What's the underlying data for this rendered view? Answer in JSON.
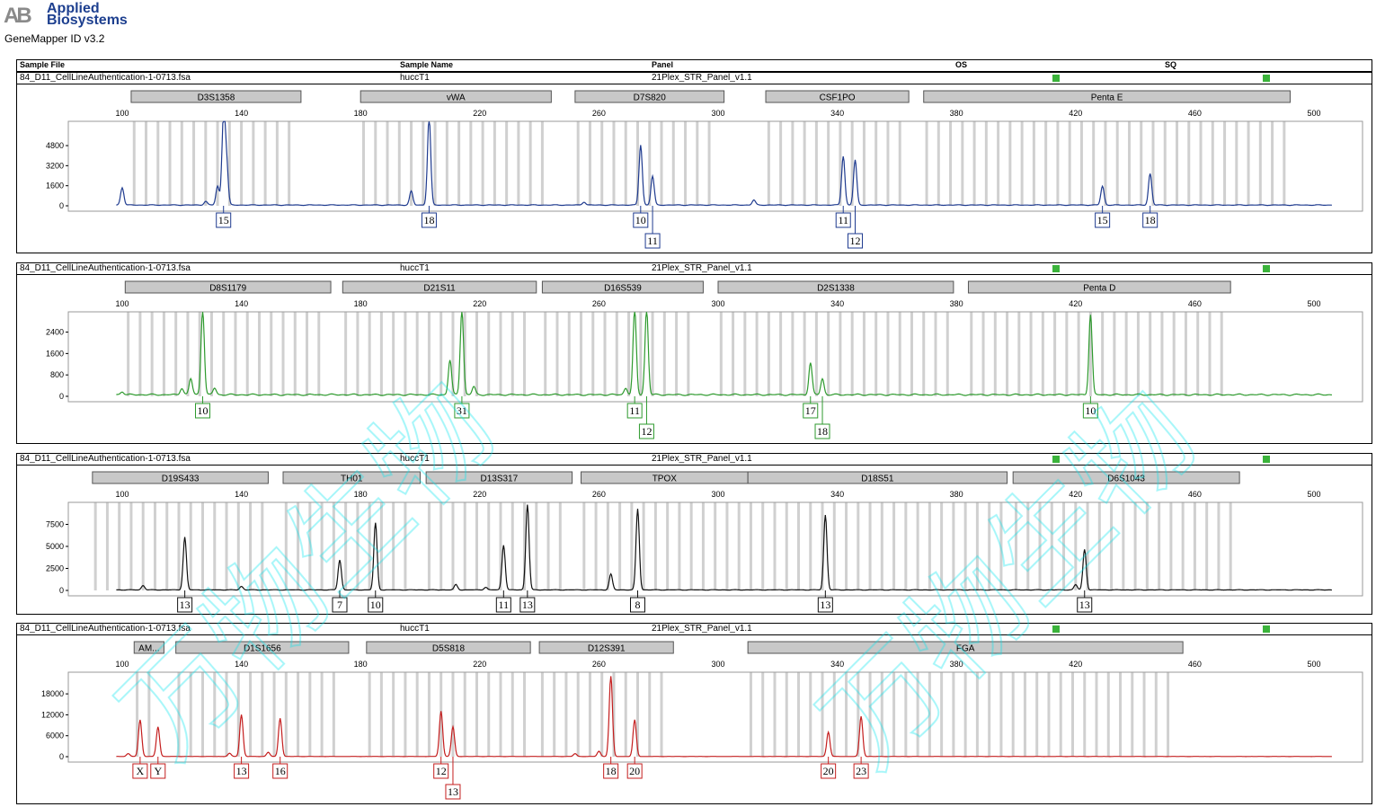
{
  "app": {
    "brand_mark": "AB",
    "brand_line1": "Applied",
    "brand_line2": "Biosystems",
    "version": "GeneMapper ID v3.2",
    "brand_color": "#1d3f8f"
  },
  "header": {
    "sample_file": "Sample File",
    "sample_name": "Sample Name",
    "panel": "Panel",
    "os": "OS",
    "sq": "SQ"
  },
  "watermark_text": "万物生物",
  "chart_data": [
    {
      "type": "line",
      "dye": "blue",
      "color": "#1f3b8f",
      "sample_file": "84_D11_CellLineAuthentication-1-0713.fsa",
      "sample_name": "huccT1",
      "panel": "21Plex_STR_Panel_v1.1",
      "x_ticks": [
        100,
        140,
        180,
        220,
        260,
        300,
        340,
        380,
        420,
        460,
        500
      ],
      "y_ticks": [
        0,
        1600,
        3200,
        4800
      ],
      "y_tick_labels": [
        "0",
        "1600",
        "3200",
        "4800"
      ],
      "ylim": [
        0,
        6400
      ],
      "markers": [
        {
          "name": "D3S1358",
          "start": 103,
          "end": 160
        },
        {
          "name": "vWA",
          "start": 180,
          "end": 244
        },
        {
          "name": "D7S820",
          "start": 252,
          "end": 302
        },
        {
          "name": "CSF1PO",
          "start": 316,
          "end": 364
        },
        {
          "name": "Penta E",
          "start": 369,
          "end": 492
        }
      ],
      "peaks": [
        {
          "x": 132,
          "h": 1500
        },
        {
          "x": 134,
          "h": 7000
        },
        {
          "x": 135,
          "h": 3200
        },
        {
          "x": 197,
          "h": 1100
        },
        {
          "x": 203,
          "h": 7000
        },
        {
          "x": 274,
          "h": 4800
        },
        {
          "x": 278,
          "h": 2300
        },
        {
          "x": 342,
          "h": 3900
        },
        {
          "x": 346,
          "h": 3600
        },
        {
          "x": 429,
          "h": 1500
        },
        {
          "x": 445,
          "h": 2500
        },
        {
          "x": 100,
          "h": 1400
        },
        {
          "x": 128,
          "h": 300
        },
        {
          "x": 255,
          "h": 250
        },
        {
          "x": 312,
          "h": 400
        }
      ],
      "alleles": [
        {
          "label": "15",
          "x": 134,
          "row": 0
        },
        {
          "label": "18",
          "x": 203,
          "row": 0
        },
        {
          "label": "10",
          "x": 274,
          "row": 0
        },
        {
          "label": "11",
          "x": 278,
          "row": 1
        },
        {
          "label": "11",
          "x": 342,
          "row": 0
        },
        {
          "label": "12",
          "x": 346,
          "row": 1
        },
        {
          "label": "15",
          "x": 429,
          "row": 0
        },
        {
          "label": "18",
          "x": 445,
          "row": 0
        }
      ]
    },
    {
      "type": "line",
      "dye": "green",
      "color": "#2e9a2e",
      "sample_file": "84_D11_CellLineAuthentication-1-0713.fsa",
      "sample_name": "huccT1",
      "panel": "21Plex_STR_Panel_v1.1",
      "x_ticks": [
        100,
        140,
        180,
        220,
        260,
        300,
        340,
        380,
        420,
        460,
        500
      ],
      "y_ticks": [
        0,
        800,
        1600,
        2400
      ],
      "y_tick_labels": [
        "0",
        "800",
        "1600",
        "2400"
      ],
      "ylim": [
        0,
        3000
      ],
      "markers": [
        {
          "name": "D8S1179",
          "start": 101,
          "end": 170
        },
        {
          "name": "D21S11",
          "start": 174,
          "end": 239
        },
        {
          "name": "D16S539",
          "start": 241,
          "end": 295
        },
        {
          "name": "D2S1338",
          "start": 300,
          "end": 379
        },
        {
          "name": "Penta D",
          "start": 384,
          "end": 472
        }
      ],
      "peaks": [
        {
          "x": 123,
          "h": 600
        },
        {
          "x": 127,
          "h": 3200
        },
        {
          "x": 131,
          "h": 250
        },
        {
          "x": 210,
          "h": 1300
        },
        {
          "x": 214,
          "h": 3200
        },
        {
          "x": 218,
          "h": 300
        },
        {
          "x": 272,
          "h": 3200
        },
        {
          "x": 276,
          "h": 3200
        },
        {
          "x": 269,
          "h": 250
        },
        {
          "x": 331,
          "h": 1200
        },
        {
          "x": 335,
          "h": 600
        },
        {
          "x": 425,
          "h": 3000
        },
        {
          "x": 120,
          "h": 250
        },
        {
          "x": 100,
          "h": 120
        }
      ],
      "alleles": [
        {
          "label": "10",
          "x": 127,
          "row": 0
        },
        {
          "label": "31",
          "x": 214,
          "row": 0
        },
        {
          "label": "11",
          "x": 272,
          "row": 0
        },
        {
          "label": "12",
          "x": 276,
          "row": 1
        },
        {
          "label": "17",
          "x": 331,
          "row": 0
        },
        {
          "label": "18",
          "x": 335,
          "row": 1
        },
        {
          "label": "10",
          "x": 425,
          "row": 0
        }
      ]
    },
    {
      "type": "line",
      "dye": "black",
      "color": "#111111",
      "sample_file": "84_D11_CellLineAuthentication-1-0713.fsa",
      "sample_name": "huccT1",
      "panel": "21Plex_STR_Panel_v1.1",
      "x_ticks": [
        100,
        140,
        180,
        220,
        260,
        300,
        340,
        380,
        420,
        460,
        500
      ],
      "y_ticks": [
        0,
        2500,
        5000,
        7500
      ],
      "y_tick_labels": [
        "0",
        "2500",
        "5000",
        "7500"
      ],
      "ylim": [
        0,
        9500
      ],
      "markers": [
        {
          "name": "D19S433",
          "start": 90,
          "end": 149
        },
        {
          "name": "TH01",
          "start": 154,
          "end": 200
        },
        {
          "name": "D13S317",
          "start": 202,
          "end": 251
        },
        {
          "name": "TPOX",
          "start": 254,
          "end": 310
        },
        {
          "name": "D18S51",
          "start": 310,
          "end": 397
        },
        {
          "name": "D6S1043",
          "start": 399,
          "end": 475
        }
      ],
      "peaks": [
        {
          "x": 121,
          "h": 6000
        },
        {
          "x": 173,
          "h": 3400
        },
        {
          "x": 185,
          "h": 7600
        },
        {
          "x": 228,
          "h": 5100
        },
        {
          "x": 236,
          "h": 9700
        },
        {
          "x": 264,
          "h": 1800
        },
        {
          "x": 273,
          "h": 9200
        },
        {
          "x": 336,
          "h": 8500
        },
        {
          "x": 423,
          "h": 4600
        },
        {
          "x": 107,
          "h": 500
        },
        {
          "x": 140,
          "h": 400
        },
        {
          "x": 212,
          "h": 600
        },
        {
          "x": 222,
          "h": 300
        },
        {
          "x": 420,
          "h": 600
        }
      ],
      "alleles": [
        {
          "label": "13",
          "x": 121,
          "row": 0
        },
        {
          "label": "7",
          "x": 173,
          "row": 0
        },
        {
          "label": "10",
          "x": 185,
          "row": 0
        },
        {
          "label": "11",
          "x": 228,
          "row": 0
        },
        {
          "label": "13",
          "x": 236,
          "row": 0
        },
        {
          "label": "8",
          "x": 273,
          "row": 0
        },
        {
          "label": "13",
          "x": 336,
          "row": 0
        },
        {
          "label": "13",
          "x": 423,
          "row": 0
        }
      ]
    },
    {
      "type": "line",
      "dye": "red",
      "color": "#c41e1e",
      "sample_file": "84_D11_CellLineAuthentication-1-0713.fsa",
      "sample_name": "huccT1",
      "panel": "21Plex_STR_Panel_v1.1",
      "x_ticks": [
        100,
        140,
        180,
        220,
        260,
        300,
        340,
        380,
        420,
        460,
        500
      ],
      "y_ticks": [
        0,
        6000,
        12000,
        18000
      ],
      "y_tick_labels": [
        "0",
        "6000",
        "12000",
        "18000"
      ],
      "ylim": [
        0,
        23000
      ],
      "markers": [
        {
          "name": "AM...",
          "start": 104,
          "end": 114
        },
        {
          "name": "D1S1656",
          "start": 118,
          "end": 176
        },
        {
          "name": "D5S818",
          "start": 182,
          "end": 237
        },
        {
          "name": "D12S391",
          "start": 240,
          "end": 285
        },
        {
          "name": "FGA",
          "start": 310,
          "end": 456
        }
      ],
      "peaks": [
        {
          "x": 106,
          "h": 10500
        },
        {
          "x": 112,
          "h": 8500
        },
        {
          "x": 140,
          "h": 12000
        },
        {
          "x": 153,
          "h": 11000
        },
        {
          "x": 207,
          "h": 13000
        },
        {
          "x": 211,
          "h": 8500
        },
        {
          "x": 264,
          "h": 23000
        },
        {
          "x": 272,
          "h": 10500
        },
        {
          "x": 337,
          "h": 7000
        },
        {
          "x": 348,
          "h": 11500
        },
        {
          "x": 102,
          "h": 800
        },
        {
          "x": 136,
          "h": 900
        },
        {
          "x": 149,
          "h": 1200
        },
        {
          "x": 260,
          "h": 1500
        },
        {
          "x": 252,
          "h": 800
        }
      ],
      "alleles": [
        {
          "label": "X",
          "x": 106,
          "row": 0
        },
        {
          "label": "Y",
          "x": 112,
          "row": 0
        },
        {
          "label": "13",
          "x": 140,
          "row": 0
        },
        {
          "label": "16",
          "x": 153,
          "row": 0
        },
        {
          "label": "12",
          "x": 207,
          "row": 0
        },
        {
          "label": "13",
          "x": 211,
          "row": 1
        },
        {
          "label": "18",
          "x": 264,
          "row": 0
        },
        {
          "label": "20",
          "x": 272,
          "row": 0
        },
        {
          "label": "20",
          "x": 337,
          "row": 0
        },
        {
          "label": "23",
          "x": 348,
          "row": 0
        }
      ]
    }
  ]
}
